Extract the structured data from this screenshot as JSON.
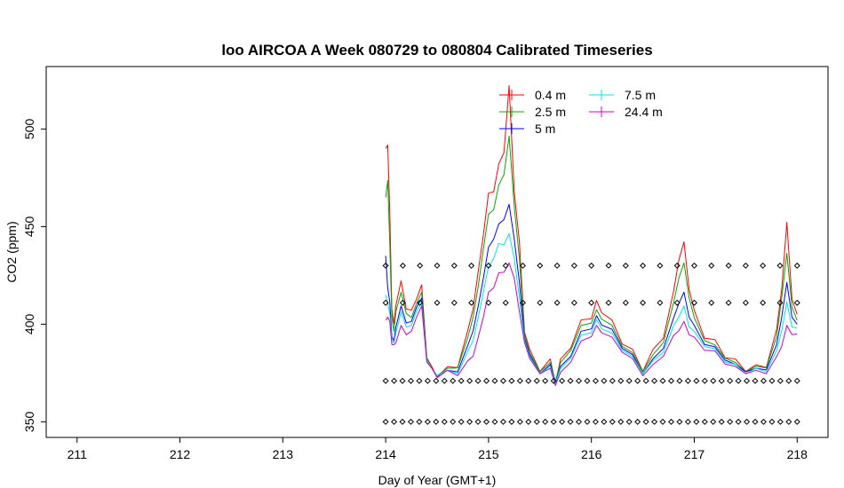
{
  "chart_data": {
    "type": "line",
    "title": "loo AIRCOA A  Week 080729 to 080804  Calibrated Timeseries",
    "xlabel": "Day of Year (GMT+1)",
    "ylabel": "CO2 (ppm)",
    "xlim": [
      210.7,
      218.3
    ],
    "ylim": [
      342,
      532
    ],
    "xticks": [
      211,
      212,
      213,
      214,
      215,
      216,
      217,
      218
    ],
    "yticks": [
      350,
      400,
      450,
      500
    ],
    "legend_position": "top",
    "series": [
      {
        "name": "0.4 m",
        "color": "#ff0000",
        "x": [
          214.0,
          214.02,
          214.04,
          214.06,
          214.08,
          214.1,
          214.15,
          214.2,
          214.25,
          214.3,
          214.35,
          214.4,
          214.45,
          214.5,
          214.6,
          214.7,
          214.8,
          214.85,
          214.9,
          214.95,
          215.0,
          215.05,
          215.1,
          215.15,
          215.2,
          215.25,
          215.3,
          215.35,
          215.4,
          215.5,
          215.6,
          215.65,
          215.7,
          215.8,
          215.9,
          216.0,
          216.05,
          216.1,
          216.2,
          216.3,
          216.4,
          216.5,
          216.6,
          216.7,
          216.8,
          216.85,
          216.9,
          216.95,
          217.0,
          217.1,
          217.2,
          217.3,
          217.4,
          217.5,
          217.6,
          217.7,
          217.8,
          217.85,
          217.9,
          217.95,
          218.0
        ],
        "y": [
          490,
          494,
          455,
          410,
          398,
          412,
          420,
          410,
          405,
          415,
          418,
          385,
          376,
          375,
          376,
          380,
          395,
          410,
          425,
          448,
          465,
          470,
          480,
          490,
          520,
          470,
          440,
          398,
          385,
          378,
          380,
          372,
          380,
          390,
          400,
          405,
          410,
          408,
          400,
          392,
          385,
          378,
          385,
          395,
          415,
          435,
          440,
          420,
          405,
          395,
          390,
          385,
          380,
          378,
          377,
          380,
          395,
          420,
          450,
          415,
          405
        ]
      },
      {
        "name": "2.5 m",
        "color": "#00aa00",
        "x": [
          214.0,
          214.02,
          214.04,
          214.06,
          214.08,
          214.1,
          214.15,
          214.2,
          214.25,
          214.3,
          214.35,
          214.4,
          214.45,
          214.5,
          214.6,
          214.7,
          214.8,
          214.85,
          214.9,
          214.95,
          215.0,
          215.05,
          215.1,
          215.15,
          215.2,
          215.25,
          215.3,
          215.35,
          215.4,
          215.5,
          215.6,
          215.65,
          215.7,
          215.8,
          215.9,
          216.0,
          216.05,
          216.1,
          216.2,
          216.3,
          216.4,
          216.5,
          216.6,
          216.7,
          216.8,
          216.85,
          216.9,
          216.95,
          217.0,
          217.1,
          217.2,
          217.3,
          217.4,
          217.5,
          217.6,
          217.7,
          217.8,
          217.85,
          217.9,
          217.95,
          218.0
        ],
        "y": [
          465,
          475,
          440,
          405,
          395,
          408,
          415,
          407,
          402,
          412,
          415,
          384,
          376,
          375,
          376,
          379,
          392,
          405,
          418,
          440,
          455,
          460,
          470,
          478,
          495,
          462,
          432,
          396,
          384,
          377,
          379,
          372,
          379,
          388,
          398,
          402,
          406,
          404,
          398,
          390,
          384,
          377,
          383,
          392,
          410,
          425,
          430,
          415,
          402,
          393,
          388,
          384,
          379,
          377,
          377,
          379,
          392,
          415,
          435,
          410,
          402
        ]
      },
      {
        "name": "5 m",
        "color": "#0000ff",
        "x": [
          214.0,
          214.02,
          214.04,
          214.06,
          214.08,
          214.1,
          214.15,
          214.2,
          214.25,
          214.3,
          214.35,
          214.4,
          214.45,
          214.5,
          214.6,
          214.7,
          214.8,
          214.85,
          214.9,
          214.95,
          215.0,
          215.05,
          215.1,
          215.15,
          215.2,
          215.25,
          215.3,
          215.35,
          215.4,
          215.5,
          215.6,
          215.65,
          215.7,
          215.8,
          215.9,
          216.0,
          216.05,
          216.1,
          216.2,
          216.3,
          216.4,
          216.5,
          216.6,
          216.7,
          216.8,
          216.85,
          216.9,
          216.95,
          217.0,
          217.1,
          217.2,
          217.3,
          217.4,
          217.5,
          217.6,
          217.7,
          217.8,
          217.85,
          217.9,
          217.95,
          218.0
        ],
        "y": [
          435,
          420,
          410,
          395,
          390,
          400,
          408,
          402,
          400,
          410,
          412,
          383,
          376,
          375,
          375,
          377,
          388,
          398,
          408,
          425,
          438,
          445,
          450,
          455,
          460,
          445,
          420,
          394,
          383,
          376,
          378,
          371,
          377,
          385,
          395,
          399,
          403,
          401,
          396,
          389,
          383,
          376,
          381,
          389,
          402,
          412,
          415,
          405,
          398,
          391,
          387,
          383,
          378,
          377,
          376,
          378,
          388,
          405,
          420,
          405,
          400
        ]
      },
      {
        "name": "7.5 m",
        "color": "#00e5e5",
        "x": [
          214.0,
          214.02,
          214.04,
          214.06,
          214.08,
          214.1,
          214.15,
          214.2,
          214.25,
          214.3,
          214.35,
          214.4,
          214.45,
          214.5,
          214.6,
          214.7,
          214.8,
          214.85,
          214.9,
          214.95,
          215.0,
          215.05,
          215.1,
          215.15,
          215.2,
          215.25,
          215.3,
          215.35,
          215.4,
          215.5,
          215.6,
          215.65,
          215.7,
          215.8,
          215.9,
          216.0,
          216.05,
          216.1,
          216.2,
          216.3,
          216.4,
          216.5,
          216.6,
          216.7,
          216.8,
          216.85,
          216.9,
          216.95,
          217.0,
          217.1,
          217.2,
          217.3,
          217.4,
          217.5,
          217.6,
          217.7,
          217.8,
          217.85,
          217.9,
          217.95,
          218.0
        ],
        "y": [
          415,
          412,
          404,
          393,
          389,
          397,
          405,
          400,
          398,
          408,
          410,
          383,
          376,
          375,
          375,
          376,
          385,
          393,
          402,
          418,
          428,
          435,
          440,
          442,
          445,
          435,
          412,
          393,
          382,
          376,
          377,
          371,
          376,
          384,
          393,
          397,
          401,
          399,
          394,
          388,
          382,
          376,
          380,
          387,
          398,
          405,
          408,
          400,
          395,
          390,
          386,
          382,
          378,
          376,
          376,
          377,
          385,
          398,
          410,
          400,
          398
        ]
      },
      {
        "name": "24.4 m",
        "color": "#cc00cc",
        "x": [
          214.0,
          214.02,
          214.04,
          214.06,
          214.08,
          214.1,
          214.15,
          214.2,
          214.25,
          214.3,
          214.35,
          214.4,
          214.45,
          214.5,
          214.6,
          214.7,
          214.8,
          214.85,
          214.9,
          214.95,
          215.0,
          215.05,
          215.1,
          215.15,
          215.2,
          215.25,
          215.3,
          215.35,
          215.4,
          215.5,
          215.6,
          215.65,
          215.7,
          215.8,
          215.9,
          216.0,
          216.05,
          216.1,
          216.2,
          216.3,
          216.4,
          216.5,
          216.6,
          216.7,
          216.8,
          216.85,
          216.9,
          216.95,
          217.0,
          217.1,
          217.2,
          217.3,
          217.4,
          217.5,
          217.6,
          217.7,
          217.8,
          217.85,
          217.9,
          217.95,
          218.0
        ],
        "y": [
          402,
          405,
          400,
          391,
          388,
          392,
          398,
          396,
          395,
          405,
          408,
          382,
          376,
          374,
          375,
          375,
          380,
          385,
          392,
          405,
          415,
          420,
          425,
          428,
          430,
          425,
          405,
          392,
          381,
          376,
          376,
          370,
          374,
          382,
          390,
          395,
          398,
          397,
          392,
          387,
          381,
          375,
          378,
          385,
          393,
          398,
          400,
          396,
          392,
          388,
          385,
          381,
          377,
          376,
          375,
          376,
          382,
          390,
          398,
          396,
          395
        ]
      }
    ],
    "marker_rows": {
      "symbol": "diamond",
      "x_start": 214.0,
      "x_end": 218.0,
      "levels": [
        {
          "y": 430,
          "count": 25
        },
        {
          "y": 411,
          "count": 25
        },
        {
          "y": 371,
          "count": 50
        },
        {
          "y": 350,
          "count": 50
        }
      ]
    }
  }
}
